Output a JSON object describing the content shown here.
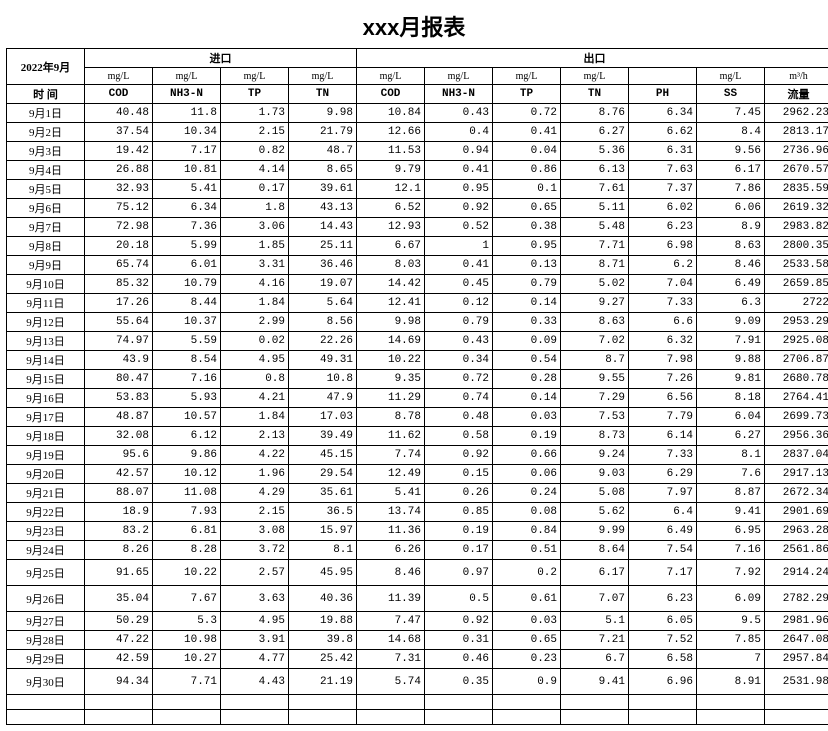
{
  "title": "xxx月报表",
  "period": "2022年9月",
  "time_label": "时 间",
  "sections": {
    "inlet": "进口",
    "outlet": "出口"
  },
  "units": [
    "mg/L",
    "mg/L",
    "mg/L",
    "mg/L",
    "mg/L",
    "mg/L",
    "mg/L",
    "mg/L",
    "",
    "mg/L",
    "m³/h"
  ],
  "params": [
    "COD",
    "NH3-N",
    "TP",
    "TN",
    "COD",
    "NH3-N",
    "TP",
    "TN",
    "PH",
    "SS",
    "流量"
  ],
  "colors": {
    "border": "#000000",
    "background": "#ffffff",
    "text": "#000000"
  },
  "font": {
    "body_pt": 11,
    "title_pt": 22,
    "family": "SimSun"
  },
  "rows": [
    {
      "d": "9月1日",
      "v": [
        "40.48",
        "11.8",
        "1.73",
        "9.98",
        "10.84",
        "0.43",
        "0.72",
        "8.76",
        "6.34",
        "7.45",
        "2962.23"
      ]
    },
    {
      "d": "9月2日",
      "v": [
        "37.54",
        "10.34",
        "2.15",
        "21.79",
        "12.66",
        "0.4",
        "0.41",
        "6.27",
        "6.62",
        "8.4",
        "2813.17"
      ]
    },
    {
      "d": "9月3日",
      "v": [
        "19.42",
        "7.17",
        "0.82",
        "48.7",
        "11.53",
        "0.94",
        "0.04",
        "5.36",
        "6.31",
        "9.56",
        "2736.96"
      ]
    },
    {
      "d": "9月4日",
      "v": [
        "26.88",
        "10.81",
        "4.14",
        "8.65",
        "9.79",
        "0.41",
        "0.86",
        "6.13",
        "7.63",
        "6.17",
        "2670.57"
      ]
    },
    {
      "d": "9月5日",
      "v": [
        "32.93",
        "5.41",
        "0.17",
        "39.61",
        "12.1",
        "0.95",
        "0.1",
        "7.61",
        "7.37",
        "7.86",
        "2835.59"
      ]
    },
    {
      "d": "9月6日",
      "v": [
        "75.12",
        "6.34",
        "1.8",
        "43.13",
        "6.52",
        "0.92",
        "0.65",
        "5.11",
        "6.02",
        "6.06",
        "2619.32"
      ]
    },
    {
      "d": "9月7日",
      "v": [
        "72.98",
        "7.36",
        "3.06",
        "14.43",
        "12.93",
        "0.52",
        "0.38",
        "5.48",
        "6.23",
        "8.9",
        "2983.82"
      ]
    },
    {
      "d": "9月8日",
      "v": [
        "20.18",
        "5.99",
        "1.85",
        "25.11",
        "6.67",
        "1",
        "0.95",
        "7.71",
        "6.98",
        "8.63",
        "2800.35"
      ]
    },
    {
      "d": "9月9日",
      "v": [
        "65.74",
        "6.01",
        "3.31",
        "36.46",
        "8.03",
        "0.41",
        "0.13",
        "8.71",
        "6.2",
        "8.46",
        "2533.58"
      ]
    },
    {
      "d": "9月10日",
      "v": [
        "85.32",
        "10.79",
        "4.16",
        "19.07",
        "14.42",
        "0.45",
        "0.79",
        "5.02",
        "7.04",
        "6.49",
        "2659.85"
      ]
    },
    {
      "d": "9月11日",
      "v": [
        "17.26",
        "8.44",
        "1.84",
        "5.64",
        "12.41",
        "0.12",
        "0.14",
        "9.27",
        "7.33",
        "6.3",
        "2722"
      ]
    },
    {
      "d": "9月12日",
      "v": [
        "55.64",
        "10.37",
        "2.99",
        "8.56",
        "9.98",
        "0.79",
        "0.33",
        "8.63",
        "6.6",
        "9.09",
        "2953.29"
      ]
    },
    {
      "d": "9月13日",
      "v": [
        "74.97",
        "5.59",
        "0.02",
        "22.26",
        "14.69",
        "0.43",
        "0.09",
        "7.02",
        "6.32",
        "7.91",
        "2925.08"
      ]
    },
    {
      "d": "9月14日",
      "v": [
        "43.9",
        "8.54",
        "4.95",
        "49.31",
        "10.22",
        "0.34",
        "0.54",
        "8.7",
        "7.98",
        "9.88",
        "2706.87"
      ]
    },
    {
      "d": "9月15日",
      "v": [
        "80.47",
        "7.16",
        "0.8",
        "10.8",
        "9.35",
        "0.72",
        "0.28",
        "9.55",
        "7.26",
        "9.81",
        "2680.78"
      ]
    },
    {
      "d": "9月16日",
      "v": [
        "53.83",
        "5.93",
        "4.21",
        "47.9",
        "11.29",
        "0.74",
        "0.14",
        "7.29",
        "6.56",
        "8.18",
        "2764.41"
      ]
    },
    {
      "d": "9月17日",
      "v": [
        "48.87",
        "10.57",
        "1.84",
        "17.03",
        "8.78",
        "0.48",
        "0.03",
        "7.53",
        "7.79",
        "6.04",
        "2699.73"
      ]
    },
    {
      "d": "9月18日",
      "v": [
        "32.08",
        "6.12",
        "2.13",
        "39.49",
        "11.62",
        "0.58",
        "0.19",
        "8.73",
        "6.14",
        "6.27",
        "2956.36"
      ]
    },
    {
      "d": "9月19日",
      "v": [
        "95.6",
        "9.86",
        "4.22",
        "45.15",
        "7.74",
        "0.92",
        "0.66",
        "9.24",
        "7.33",
        "8.1",
        "2837.04"
      ]
    },
    {
      "d": "9月20日",
      "v": [
        "42.57",
        "10.12",
        "1.96",
        "29.54",
        "12.49",
        "0.15",
        "0.06",
        "9.03",
        "6.29",
        "7.6",
        "2917.13"
      ]
    },
    {
      "d": "9月21日",
      "v": [
        "88.07",
        "11.08",
        "4.29",
        "35.61",
        "5.41",
        "0.26",
        "0.24",
        "5.08",
        "7.97",
        "8.87",
        "2672.34"
      ]
    },
    {
      "d": "9月22日",
      "v": [
        "18.9",
        "7.93",
        "2.15",
        "36.5",
        "13.74",
        "0.85",
        "0.08",
        "5.62",
        "6.4",
        "9.41",
        "2901.69"
      ]
    },
    {
      "d": "9月23日",
      "v": [
        "83.2",
        "6.81",
        "3.08",
        "15.97",
        "11.36",
        "0.19",
        "0.84",
        "9.99",
        "6.49",
        "6.95",
        "2963.28"
      ]
    },
    {
      "d": "9月24日",
      "v": [
        "8.26",
        "8.28",
        "3.72",
        "8.1",
        "6.26",
        "0.17",
        "0.51",
        "8.64",
        "7.54",
        "7.16",
        "2561.86"
      ]
    },
    {
      "d": "9月25日",
      "v": [
        "91.65",
        "10.22",
        "2.57",
        "45.95",
        "8.46",
        "0.97",
        "0.2",
        "6.17",
        "7.17",
        "7.92",
        "2914.24"
      ],
      "tall": true
    },
    {
      "d": "9月26日",
      "v": [
        "35.04",
        "7.67",
        "3.63",
        "40.36",
        "11.39",
        "0.5",
        "0.61",
        "7.07",
        "6.23",
        "6.09",
        "2782.29"
      ],
      "tall": true
    },
    {
      "d": "9月27日",
      "v": [
        "50.29",
        "5.3",
        "4.95",
        "19.88",
        "7.47",
        "0.92",
        "0.03",
        "5.1",
        "6.05",
        "9.5",
        "2981.96"
      ]
    },
    {
      "d": "9月28日",
      "v": [
        "47.22",
        "10.98",
        "3.91",
        "39.8",
        "14.68",
        "0.31",
        "0.65",
        "7.21",
        "7.52",
        "7.85",
        "2647.08"
      ]
    },
    {
      "d": "9月29日",
      "v": [
        "42.59",
        "10.27",
        "4.77",
        "25.42",
        "7.31",
        "0.46",
        "0.23",
        "6.7",
        "6.58",
        "7",
        "2957.84"
      ]
    },
    {
      "d": "9月30日",
      "v": [
        "94.34",
        "7.71",
        "4.43",
        "21.19",
        "5.74",
        "0.35",
        "0.9",
        "9.41",
        "6.96",
        "8.91",
        "2531.98"
      ],
      "tall": true
    }
  ]
}
